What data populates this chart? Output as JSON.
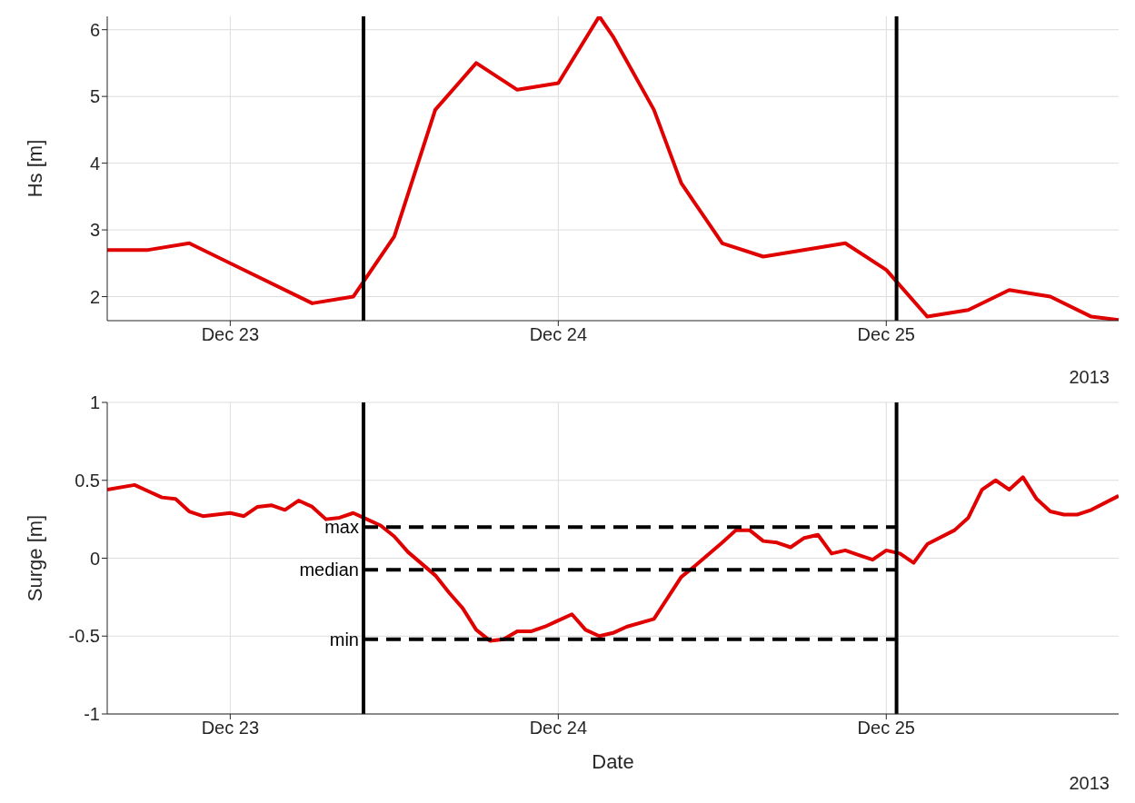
{
  "chart_data": [
    {
      "type": "line",
      "ylabel": "Hs [m]",
      "annotations": [
        "2013"
      ],
      "grid": true,
      "marker": "none",
      "line_style": "solid",
      "xlim": [
        "2013-12-22T15:00",
        "2013-12-25T17:00"
      ],
      "xticks": [
        {
          "value": "2013-12-23",
          "label": "Dec 23"
        },
        {
          "value": "2013-12-24",
          "label": "Dec 24"
        },
        {
          "value": "2013-12-25",
          "label": "Dec 25"
        }
      ],
      "ylim": [
        1.64,
        6.2
      ],
      "yticks": [
        2,
        3,
        4,
        5,
        6
      ],
      "ref_lines": [
        {
          "axis": "x",
          "value": "2013-12-23T09:45",
          "color": "#000000",
          "line_style": "solid"
        },
        {
          "axis": "x",
          "value": "2013-12-25T00:45",
          "color": "#000000",
          "line_style": "solid"
        }
      ],
      "series": [
        {
          "color": "#e00000",
          "x": [
            "2013-12-22T15:00",
            "2013-12-22T18:00",
            "2013-12-22T21:00",
            "2013-12-23T06:00",
            "2013-12-23T09:00",
            "2013-12-23T12:00",
            "2013-12-23T15:00",
            "2013-12-23T18:00",
            "2013-12-23T21:00",
            "2013-12-24T00:00",
            "2013-12-24T03:00",
            "2013-12-24T04:00",
            "2013-12-24T07:00",
            "2013-12-24T09:00",
            "2013-12-24T12:00",
            "2013-12-24T15:00",
            "2013-12-24T21:00",
            "2013-12-25T00:00",
            "2013-12-25T03:00",
            "2013-12-25T06:00",
            "2013-12-25T09:00",
            "2013-12-25T12:00",
            "2013-12-25T15:00",
            "2013-12-25T17:00"
          ],
          "values": [
            2.7,
            2.7,
            2.8,
            1.9,
            2.0,
            2.9,
            4.8,
            5.5,
            5.1,
            5.2,
            6.2,
            5.9,
            4.8,
            3.7,
            2.8,
            2.6,
            2.8,
            2.4,
            1.7,
            1.8,
            2.1,
            2.0,
            1.7,
            1.65
          ]
        }
      ]
    },
    {
      "type": "line",
      "ylabel": "Surge [m]",
      "xlabel": "Date",
      "annotations": [
        "2013"
      ],
      "grid": true,
      "marker": "none",
      "line_style": "solid",
      "xlim": [
        "2013-12-22T15:00",
        "2013-12-25T17:00"
      ],
      "xticks": [
        {
          "value": "2013-12-23",
          "label": "Dec 23"
        },
        {
          "value": "2013-12-24",
          "label": "Dec 24"
        },
        {
          "value": "2013-12-25",
          "label": "Dec 25"
        }
      ],
      "ylim": [
        -1,
        1
      ],
      "yticks": [
        -1,
        -0.5,
        0,
        0.5,
        1
      ],
      "ref_lines": [
        {
          "axis": "x",
          "value": "2013-12-23T09:45",
          "color": "#000000",
          "line_style": "solid"
        },
        {
          "axis": "x",
          "value": "2013-12-25T00:45",
          "color": "#000000",
          "line_style": "solid"
        },
        {
          "axis": "y",
          "value": 0.2,
          "label": "max",
          "color": "#000000",
          "line_style": "dashed"
        },
        {
          "axis": "y",
          "value": -0.075,
          "label": "median",
          "color": "#000000",
          "line_style": "dashed"
        },
        {
          "axis": "y",
          "value": -0.52,
          "label": "min",
          "color": "#000000",
          "line_style": "dashed"
        }
      ],
      "series": [
        {
          "color": "#e00000",
          "x": [
            "2013-12-22T15:00",
            "2013-12-22T17:00",
            "2013-12-22T18:00",
            "2013-12-22T19:00",
            "2013-12-22T20:00",
            "2013-12-22T21:00",
            "2013-12-22T22:00",
            "2013-12-23T00:00",
            "2013-12-23T01:00",
            "2013-12-23T02:00",
            "2013-12-23T03:00",
            "2013-12-23T04:00",
            "2013-12-23T05:00",
            "2013-12-23T06:00",
            "2013-12-23T07:00",
            "2013-12-23T08:00",
            "2013-12-23T09:00",
            "2013-12-23T10:00",
            "2013-12-23T11:00",
            "2013-12-23T12:00",
            "2013-12-23T13:00",
            "2013-12-23T15:00",
            "2013-12-23T16:00",
            "2013-12-23T17:00",
            "2013-12-23T18:00",
            "2013-12-23T19:00",
            "2013-12-23T20:00",
            "2013-12-23T21:00",
            "2013-12-23T22:00",
            "2013-12-23T23:00",
            "2013-12-24T00:00",
            "2013-12-24T01:00",
            "2013-12-24T02:00",
            "2013-12-24T03:00",
            "2013-12-24T04:00",
            "2013-12-24T05:00",
            "2013-12-24T07:00",
            "2013-12-24T09:00",
            "2013-12-24T10:00",
            "2013-12-24T12:00",
            "2013-12-24T13:00",
            "2013-12-24T14:00",
            "2013-12-24T15:00",
            "2013-12-24T16:00",
            "2013-12-24T17:00",
            "2013-12-24T18:00",
            "2013-12-24T19:00",
            "2013-12-24T20:00",
            "2013-12-24T21:00",
            "2013-12-24T22:00",
            "2013-12-24T23:00",
            "2013-12-25T00:00",
            "2013-12-25T01:00",
            "2013-12-25T02:00",
            "2013-12-25T03:00",
            "2013-12-25T05:00",
            "2013-12-25T06:00",
            "2013-12-25T07:00",
            "2013-12-25T08:00",
            "2013-12-25T09:00",
            "2013-12-25T10:00",
            "2013-12-25T11:00",
            "2013-12-25T12:00",
            "2013-12-25T13:00",
            "2013-12-25T14:00",
            "2013-12-25T15:00",
            "2013-12-25T17:00"
          ],
          "values": [
            0.44,
            0.47,
            0.43,
            0.39,
            0.38,
            0.3,
            0.27,
            0.29,
            0.27,
            0.33,
            0.34,
            0.31,
            0.37,
            0.33,
            0.25,
            0.26,
            0.29,
            0.25,
            0.21,
            0.14,
            0.04,
            -0.11,
            -0.22,
            -0.32,
            -0.46,
            -0.53,
            -0.52,
            -0.47,
            -0.47,
            -0.44,
            -0.4,
            -0.36,
            -0.46,
            -0.5,
            -0.48,
            -0.44,
            -0.39,
            -0.12,
            -0.05,
            0.1,
            0.18,
            0.18,
            0.11,
            0.1,
            0.07,
            0.13,
            0.15,
            0.03,
            0.05,
            0.02,
            -0.01,
            0.05,
            0.03,
            -0.03,
            0.09,
            0.18,
            0.26,
            0.44,
            0.5,
            0.44,
            0.52,
            0.38,
            0.3,
            0.28,
            0.28,
            0.31,
            0.4
          ]
        }
      ]
    }
  ]
}
